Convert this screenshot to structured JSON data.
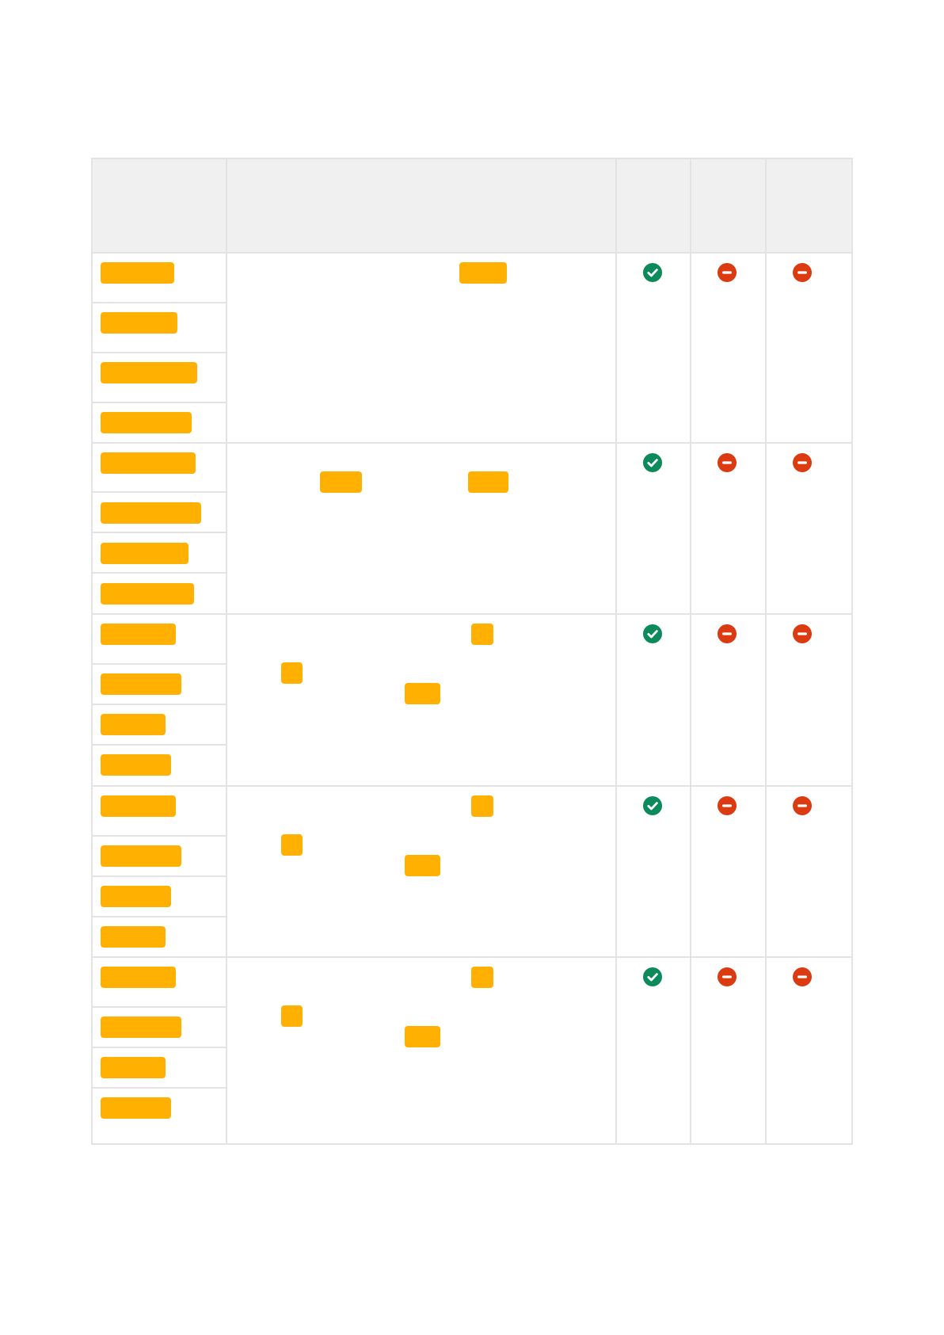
{
  "document": {
    "table": {
      "columns": [
        {
          "key": "item",
          "header": ""
        },
        {
          "key": "description",
          "header": ""
        },
        {
          "key": "status-1",
          "header": ""
        },
        {
          "key": "status-2",
          "header": ""
        },
        {
          "key": "status-3",
          "header": ""
        }
      ],
      "groups": [
        {
          "items": [
            "",
            "",
            "",
            ""
          ],
          "description": "",
          "statuses": [
            "check",
            "block",
            "block"
          ]
        },
        {
          "items": [
            "",
            "",
            "",
            ""
          ],
          "description": "",
          "statuses": [
            "check",
            "block",
            "block"
          ]
        },
        {
          "items": [
            "",
            "",
            "",
            ""
          ],
          "description": "",
          "statuses": [
            "check",
            "block",
            "block"
          ]
        },
        {
          "items": [
            "",
            "",
            "",
            ""
          ],
          "description": "",
          "statuses": [
            "check",
            "block",
            "block"
          ]
        },
        {
          "items": [
            "",
            "",
            "",
            ""
          ],
          "description": "",
          "statuses": [
            "check",
            "block",
            "block"
          ]
        }
      ]
    },
    "icons": {
      "check": "check-circle-icon",
      "block": "minus-circle-icon"
    },
    "colors": {
      "redaction": "#ffb000",
      "check": "#0c8a5b",
      "block": "#dc3a10",
      "header_background": "#f0f0f0",
      "grid_line": "#e3e3e3"
    }
  }
}
